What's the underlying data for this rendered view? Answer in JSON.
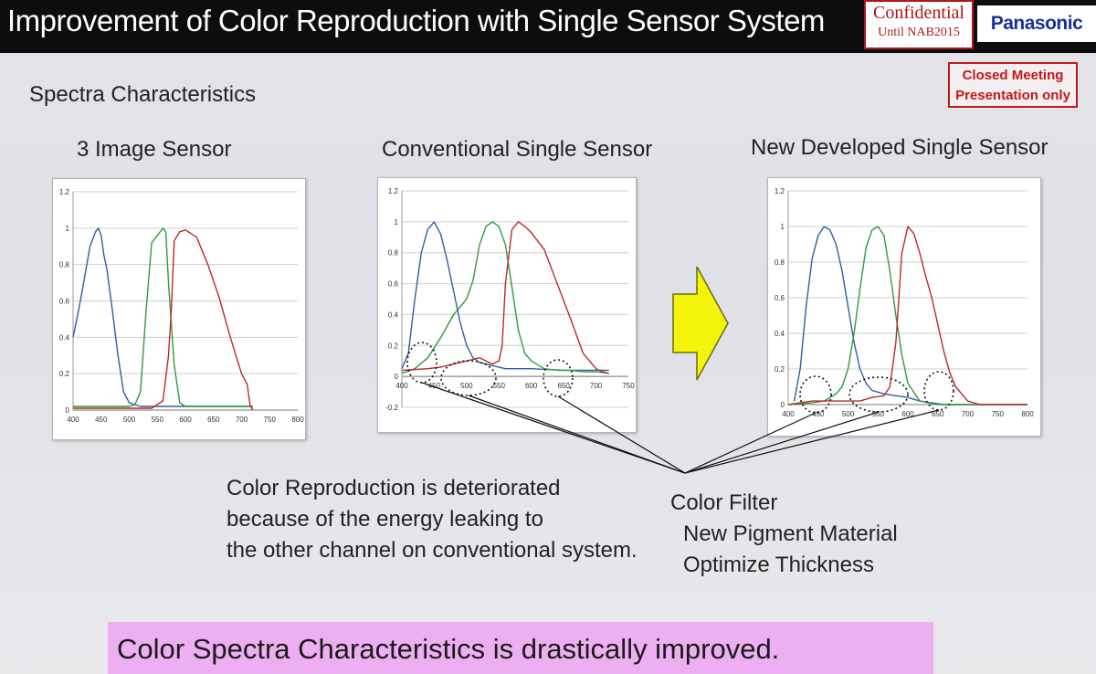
{
  "header": {
    "title": "Improvement of Color Reproduction with Single Sensor System",
    "confidential_line1": "Confidential",
    "confidential_line2": "Until NAB2015",
    "brand": "Panasonic"
  },
  "stamp": {
    "line1": "Closed Meeting",
    "line2": "Presentation only"
  },
  "section_title": "Spectra Characteristics",
  "colors": {
    "blue": "#2f5fa8",
    "green": "#2e9a3a",
    "red": "#c0272d",
    "arrow_fill": "#f2f40a",
    "highlight_bar": "#eeaef2",
    "stamp": "#c01a1a"
  },
  "chart_data": [
    {
      "type": "line",
      "title": "3 Image Sensor",
      "xlim": [
        400,
        800
      ],
      "ylim": [
        0,
        1.2
      ],
      "x_ticks": [
        400,
        450,
        500,
        550,
        600,
        650,
        700,
        750,
        800
      ],
      "y_ticks": [
        0,
        0.2,
        0.4,
        0.6,
        0.8,
        1,
        1.2
      ],
      "y_tick_labels": [
        "0",
        "0.2",
        "0.4",
        "0.6",
        "0.8",
        "1",
        "1.2"
      ],
      "grid": true,
      "series": [
        {
          "color": "blue",
          "x": [
            400,
            410,
            420,
            430,
            440,
            445,
            450,
            455,
            460,
            470,
            480,
            490,
            500,
            510,
            520,
            540,
            560,
            580,
            600,
            620,
            640,
            660,
            680,
            700,
            720
          ],
          "y": [
            0.4,
            0.55,
            0.72,
            0.9,
            0.98,
            1.0,
            0.96,
            0.85,
            0.78,
            0.55,
            0.3,
            0.1,
            0.04,
            0.03,
            0.02,
            0.02,
            0.02,
            0.02,
            0.02,
            0.02,
            0.02,
            0.02,
            0.02,
            0.02,
            0.02
          ]
        },
        {
          "color": "green",
          "x": [
            400,
            460,
            480,
            500,
            510,
            520,
            530,
            540,
            550,
            560,
            565,
            570,
            580,
            590,
            600,
            620,
            650,
            700,
            720
          ],
          "y": [
            0.02,
            0.02,
            0.02,
            0.02,
            0.03,
            0.1,
            0.55,
            0.92,
            0.96,
            1.0,
            0.98,
            0.7,
            0.25,
            0.04,
            0.02,
            0.02,
            0.02,
            0.02,
            0.02
          ]
        },
        {
          "color": "red",
          "x": [
            400,
            540,
            560,
            570,
            575,
            580,
            590,
            600,
            610,
            620,
            640,
            660,
            680,
            690,
            700,
            710,
            715,
            720
          ],
          "y": [
            0.01,
            0.01,
            0.05,
            0.3,
            0.55,
            0.93,
            0.98,
            0.99,
            0.97,
            0.95,
            0.8,
            0.62,
            0.4,
            0.3,
            0.2,
            0.14,
            0.03,
            0.0
          ]
        }
      ]
    },
    {
      "type": "line",
      "title": "Conventional Single Sensor",
      "xlim": [
        400,
        750
      ],
      "ylim": [
        -0.2,
        1.2
      ],
      "x_ticks": [
        400,
        450,
        500,
        550,
        600,
        650,
        700,
        750
      ],
      "y_ticks": [
        -0.2,
        0,
        0.2,
        0.4,
        0.6,
        0.8,
        1,
        1.2
      ],
      "y_tick_labels": [
        "-0.2",
        "0",
        "0.2",
        "0.4",
        "0.6",
        "0.8",
        "1",
        "1.2"
      ],
      "grid": true,
      "series": [
        {
          "color": "blue",
          "x": [
            400,
            410,
            420,
            430,
            440,
            450,
            460,
            470,
            480,
            490,
            500,
            510,
            520,
            530,
            540,
            560,
            600,
            650,
            700,
            720
          ],
          "y": [
            0.05,
            0.15,
            0.5,
            0.8,
            0.95,
            1.0,
            0.92,
            0.75,
            0.55,
            0.35,
            0.2,
            0.12,
            0.09,
            0.08,
            0.07,
            0.05,
            0.05,
            0.04,
            0.04,
            0.04
          ]
        },
        {
          "color": "green",
          "x": [
            400,
            420,
            440,
            460,
            480,
            500,
            510,
            520,
            530,
            540,
            550,
            560,
            570,
            580,
            590,
            600,
            620,
            640,
            660,
            680,
            700,
            720
          ],
          "y": [
            0.02,
            0.05,
            0.12,
            0.25,
            0.4,
            0.5,
            0.62,
            0.85,
            0.97,
            1.0,
            0.97,
            0.85,
            0.58,
            0.3,
            0.15,
            0.1,
            0.05,
            0.04,
            0.04,
            0.03,
            0.03,
            0.02
          ]
        },
        {
          "color": "red",
          "x": [
            400,
            440,
            460,
            480,
            500,
            510,
            520,
            530,
            540,
            550,
            555,
            560,
            570,
            580,
            590,
            600,
            620,
            640,
            660,
            680,
            700,
            710,
            720
          ],
          "y": [
            0.04,
            0.05,
            0.06,
            0.08,
            0.1,
            0.11,
            0.12,
            0.1,
            0.08,
            0.1,
            0.2,
            0.6,
            0.95,
            1.0,
            0.97,
            0.93,
            0.82,
            0.6,
            0.38,
            0.15,
            0.05,
            0.03,
            0.02
          ]
        }
      ]
    },
    {
      "type": "line",
      "title": "New Developed Single Sensor",
      "xlim": [
        400,
        800
      ],
      "ylim": [
        0,
        1.2
      ],
      "x_ticks": [
        400,
        450,
        500,
        550,
        600,
        650,
        700,
        750,
        800
      ],
      "y_ticks": [
        0,
        0.2,
        0.4,
        0.6,
        0.8,
        1,
        1.2
      ],
      "y_tick_labels": [
        "0",
        "0.2",
        "0.4",
        "0.6",
        "0.8",
        "1",
        "1.2"
      ],
      "grid": true,
      "series": [
        {
          "color": "blue",
          "x": [
            410,
            420,
            430,
            440,
            450,
            460,
            470,
            480,
            490,
            500,
            510,
            520,
            530,
            540,
            560,
            580,
            600,
            620,
            640,
            660,
            700,
            750,
            800
          ],
          "y": [
            0.02,
            0.2,
            0.55,
            0.82,
            0.95,
            1.0,
            0.98,
            0.9,
            0.75,
            0.55,
            0.35,
            0.2,
            0.12,
            0.08,
            0.06,
            0.05,
            0.04,
            0.02,
            0.01,
            0.0,
            0.0,
            0.0,
            0.0
          ]
        },
        {
          "color": "green",
          "x": [
            400,
            440,
            460,
            480,
            490,
            500,
            510,
            520,
            530,
            540,
            550,
            560,
            570,
            580,
            590,
            600,
            620,
            650,
            700,
            800
          ],
          "y": [
            0.0,
            0.01,
            0.02,
            0.06,
            0.1,
            0.2,
            0.4,
            0.65,
            0.88,
            0.98,
            1.0,
            0.95,
            0.75,
            0.5,
            0.28,
            0.12,
            0.02,
            0.0,
            0.0,
            0.0
          ]
        },
        {
          "color": "red",
          "x": [
            400,
            420,
            440,
            460,
            480,
            500,
            520,
            540,
            560,
            570,
            580,
            590,
            600,
            610,
            620,
            630,
            640,
            650,
            660,
            670,
            680,
            700,
            720,
            750,
            800
          ],
          "y": [
            0.0,
            0.01,
            0.02,
            0.02,
            0.02,
            0.02,
            0.02,
            0.04,
            0.05,
            0.1,
            0.35,
            0.85,
            1.0,
            0.96,
            0.85,
            0.72,
            0.6,
            0.45,
            0.3,
            0.18,
            0.1,
            0.02,
            0.0,
            0.0,
            0.0
          ]
        }
      ]
    }
  ],
  "caption_left": [
    "Color Reproduction is deteriorated",
    "because of the energy leaking to",
    "the other channel on conventional system."
  ],
  "caption_right": [
    "Color Filter",
    "New Pigment Material",
    "Optimize Thickness"
  ],
  "bottom_banner": "Color Spectra Characteristics is drastically improved.",
  "icons": {
    "big_arrow": "right-arrow-icon"
  }
}
